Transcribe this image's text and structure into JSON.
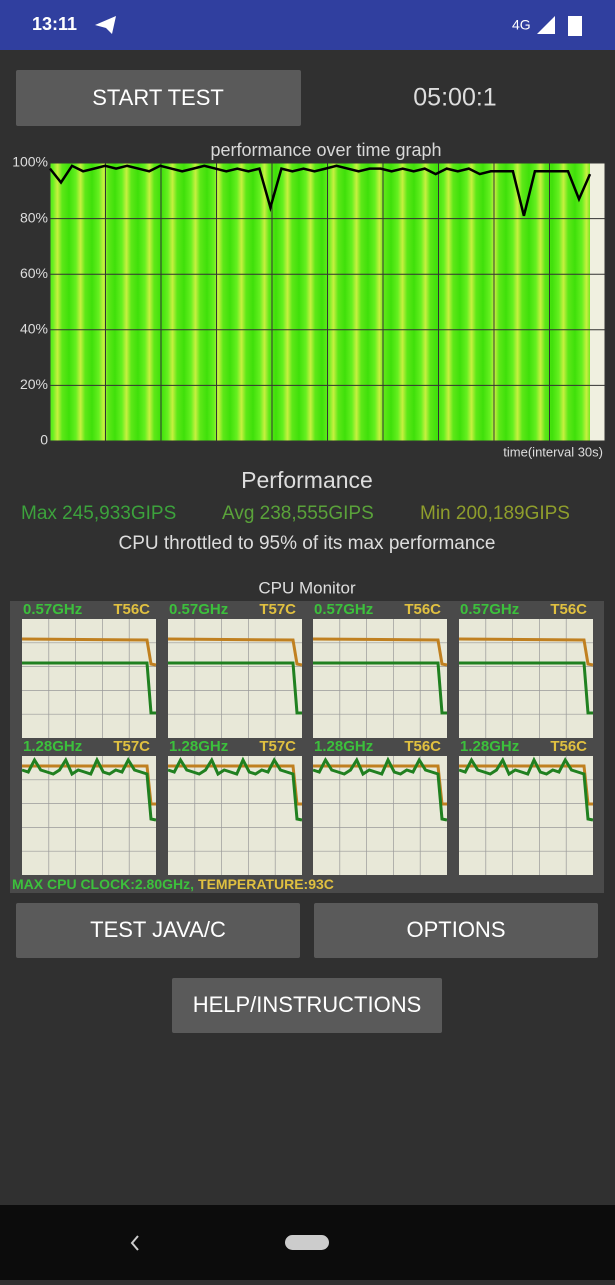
{
  "status_bar": {
    "time": "13:11",
    "network": "4G"
  },
  "start_button": "START TEST",
  "timer": "05:00:1",
  "graph": {
    "title": "performance over time graph",
    "ylim": [
      0,
      100
    ],
    "yticks": [
      {
        "value": 100,
        "label": "100%"
      },
      {
        "value": 80,
        "label": "80%"
      },
      {
        "value": 60,
        "label": "60%"
      },
      {
        "value": 40,
        "label": "40%"
      },
      {
        "value": 20,
        "label": "20%"
      },
      0
    ],
    "xlabel": "time(interval 30s)",
    "values": [
      98,
      93,
      99,
      97,
      98,
      99,
      98,
      99,
      98,
      97,
      99,
      98,
      97,
      98,
      99,
      98,
      97,
      98,
      97,
      98,
      84,
      98,
      97,
      98,
      97,
      98,
      99,
      98,
      97,
      98,
      98,
      97,
      98,
      97,
      98,
      96,
      98,
      97,
      98,
      96,
      97,
      97,
      97,
      81,
      97,
      97,
      97,
      97,
      87,
      96
    ]
  },
  "performance": {
    "title": "Performance",
    "max": "Max 245,933GIPS",
    "avg": "Avg 238,555GIPS",
    "min": "Min 200,189GIPS",
    "throttle": "CPU throttled to 95% of its max performance"
  },
  "cpu_monitor": {
    "title": "CPU Monitor",
    "cores": [
      {
        "freq": "0.57GHz",
        "temp": "T56C"
      },
      {
        "freq": "0.57GHz",
        "temp": "T57C"
      },
      {
        "freq": "0.57GHz",
        "temp": "T56C"
      },
      {
        "freq": "0.57GHz",
        "temp": "T56C"
      },
      {
        "freq": "1.28GHz",
        "temp": "T57C"
      },
      {
        "freq": "1.28GHz",
        "temp": "T57C"
      },
      {
        "freq": "1.28GHz",
        "temp": "T56C"
      },
      {
        "freq": "1.28GHz",
        "temp": "T56C"
      }
    ],
    "max_clock": "MAX CPU CLOCK:2.80GHz,",
    "temperature": "TEMPERATURE:93C"
  },
  "buttons": {
    "test": "TEST JAVA/C",
    "options": "OPTIONS",
    "help": "HELP/INSTRUCTIONS"
  }
}
